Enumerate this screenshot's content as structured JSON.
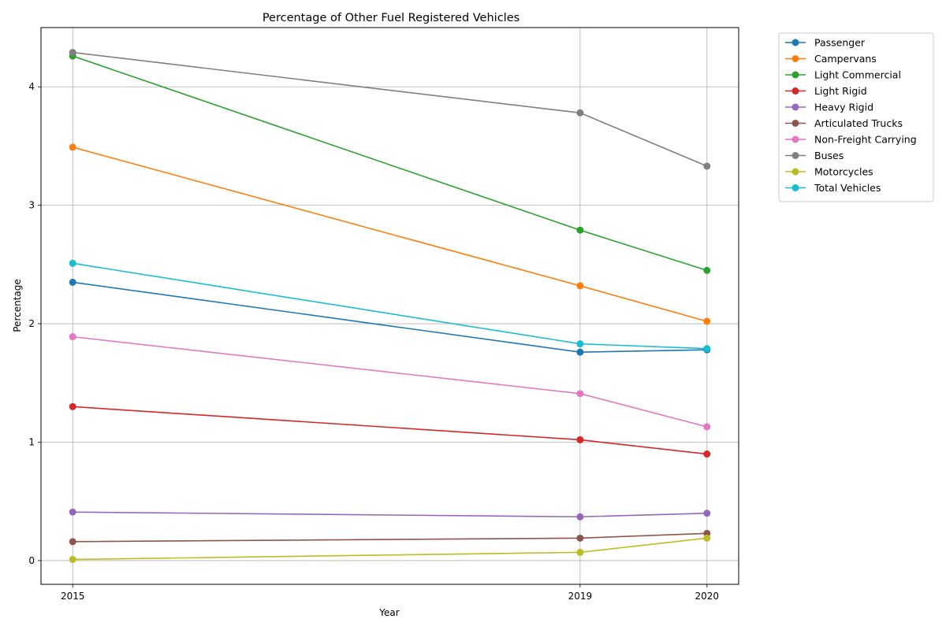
{
  "chart_data": {
    "type": "line",
    "title": "Percentage of Other Fuel Registered Vehicles",
    "xlabel": "Year",
    "ylabel": "Percentage",
    "x": [
      2015,
      2019,
      2020
    ],
    "x_ticks": [
      "2015",
      "2019",
      "2020"
    ],
    "y_ticks": [
      "0",
      "1",
      "2",
      "3",
      "4"
    ],
    "xlim": [
      2014.75,
      2020.25
    ],
    "ylim": [
      -0.2,
      4.5
    ],
    "grid": true,
    "legend_position": "outside-top-right",
    "series": [
      {
        "name": "Passenger",
        "color": "#1f77b4",
        "values": [
          2.35,
          1.76,
          1.78
        ]
      },
      {
        "name": "Campervans",
        "color": "#ff7f0e",
        "values": [
          3.49,
          2.32,
          2.02
        ]
      },
      {
        "name": "Light Commercial",
        "color": "#2ca02c",
        "values": [
          4.26,
          2.79,
          2.45
        ]
      },
      {
        "name": "Light Rigid",
        "color": "#d62728",
        "values": [
          1.3,
          1.02,
          0.9
        ]
      },
      {
        "name": "Heavy Rigid",
        "color": "#9467bd",
        "values": [
          0.41,
          0.37,
          0.4
        ]
      },
      {
        "name": "Articulated Trucks",
        "color": "#8c564b",
        "values": [
          0.16,
          0.19,
          0.23
        ]
      },
      {
        "name": "Non-Freight Carrying",
        "color": "#e377c2",
        "values": [
          1.89,
          1.41,
          1.13
        ]
      },
      {
        "name": "Buses",
        "color": "#7f7f7f",
        "values": [
          4.29,
          3.78,
          3.33
        ]
      },
      {
        "name": "Motorcycles",
        "color": "#bcbd22",
        "values": [
          0.01,
          0.07,
          0.19
        ]
      },
      {
        "name": "Total Vehicles",
        "color": "#17becf",
        "values": [
          2.51,
          1.83,
          1.79
        ]
      }
    ]
  }
}
